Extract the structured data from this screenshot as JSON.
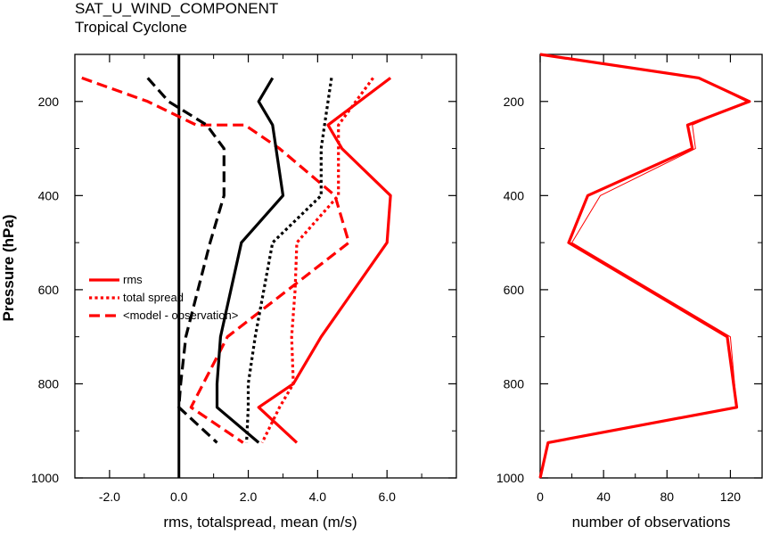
{
  "title": "SAT_U_WIND_COMPONENT",
  "subtitle": "Tropical Cyclone",
  "colors": {
    "red": "#ff0000",
    "black": "#000000"
  },
  "chart_data": [
    {
      "type": "line",
      "xlabel": "rms, totalspread, mean (m/s)",
      "ylabel": "Pressure (hPa)",
      "xlim": [
        -3.0,
        8.0
      ],
      "ylim": [
        1000,
        100
      ],
      "xticks": [
        "-2.0",
        "0.0",
        "2.0",
        "4.0",
        "6.0"
      ],
      "xtick_values": [
        -2,
        0,
        2,
        4,
        6
      ],
      "yticks": [
        "200",
        "400",
        "600",
        "800",
        "1000"
      ],
      "ytick_values": [
        200,
        400,
        600,
        800,
        1000
      ],
      "legend": {
        "placement": "center-left",
        "entries": [
          "rms",
          "total spread",
          "<model - observation>"
        ]
      },
      "zero_line": 0,
      "series": [
        {
          "name": "rms",
          "color": "#ff0000",
          "dash": "solid",
          "x": [
            6.1,
            4.3,
            4.7,
            6.1,
            6.0,
            4.1,
            3.3,
            2.3,
            3.4
          ],
          "y": [
            150,
            250,
            300,
            400,
            500,
            700,
            800,
            850,
            925
          ]
        },
        {
          "name": "total spread",
          "color": "#ff0000",
          "dash": "dotted",
          "x": [
            5.6,
            4.6,
            4.6,
            3.4,
            3.35,
            3.25,
            3.3,
            2.9,
            2.4
          ],
          "y": [
            150,
            250,
            400,
            500,
            600,
            700,
            800,
            850,
            925
          ]
        },
        {
          "name": "<model - observation>",
          "color": "#ff0000",
          "dash": "dashed",
          "x": [
            -2.8,
            -0.9,
            0.5,
            1.9,
            2.9,
            4.5,
            4.9,
            1.4,
            0.35,
            1.85
          ],
          "y": [
            150,
            200,
            250,
            250,
            300,
            400,
            500,
            700,
            850,
            925
          ]
        },
        {
          "name": "",
          "color": "#000000",
          "dash": "solid",
          "x": [
            2.7,
            2.3,
            2.7,
            2.8,
            3.0,
            1.8,
            1.2,
            1.1,
            1.1,
            2.3
          ],
          "y": [
            150,
            200,
            250,
            300,
            400,
            500,
            700,
            800,
            850,
            925
          ]
        },
        {
          "name": "",
          "color": "#000000",
          "dash": "dotted",
          "x": [
            4.4,
            4.3,
            4.2,
            4.1,
            4.1,
            2.7,
            2.2,
            2.0,
            2.0,
            1.95
          ],
          "y": [
            150,
            200,
            250,
            300,
            400,
            500,
            700,
            800,
            850,
            925
          ]
        },
        {
          "name": "",
          "color": "#000000",
          "dash": "dashed",
          "x": [
            -0.9,
            -0.3,
            0.8,
            1.3,
            1.3,
            0.9,
            0.2,
            0.05,
            0.0,
            1.1
          ],
          "y": [
            150,
            200,
            250,
            300,
            400,
            500,
            700,
            800,
            850,
            925
          ]
        }
      ]
    },
    {
      "type": "line",
      "xlabel": "number of observations",
      "ylabel": "",
      "xlim": [
        0,
        140
      ],
      "ylim": [
        1000,
        100
      ],
      "xticks": [
        "0",
        "40",
        "80",
        "120"
      ],
      "xtick_values": [
        0,
        40,
        80,
        120
      ],
      "yticks": [
        "200",
        "400",
        "600",
        "800",
        "1000"
      ],
      "ytick_values": [
        200,
        400,
        600,
        800,
        1000
      ],
      "series": [
        {
          "name": "",
          "color": "#ff0000",
          "width": "thick",
          "x": [
            0,
            100,
            132,
            93,
            96,
            30,
            18,
            118,
            124,
            5,
            0
          ],
          "y": [
            100,
            150,
            200,
            250,
            300,
            400,
            500,
            700,
            850,
            925,
            1000
          ]
        },
        {
          "name": "",
          "color": "#ff0000",
          "width": "thin",
          "x": [
            0,
            100,
            130,
            96,
            98,
            38,
            20,
            120,
            124,
            5,
            0
          ],
          "y": [
            100,
            150,
            200,
            250,
            300,
            400,
            500,
            700,
            850,
            925,
            1000
          ]
        }
      ]
    }
  ]
}
